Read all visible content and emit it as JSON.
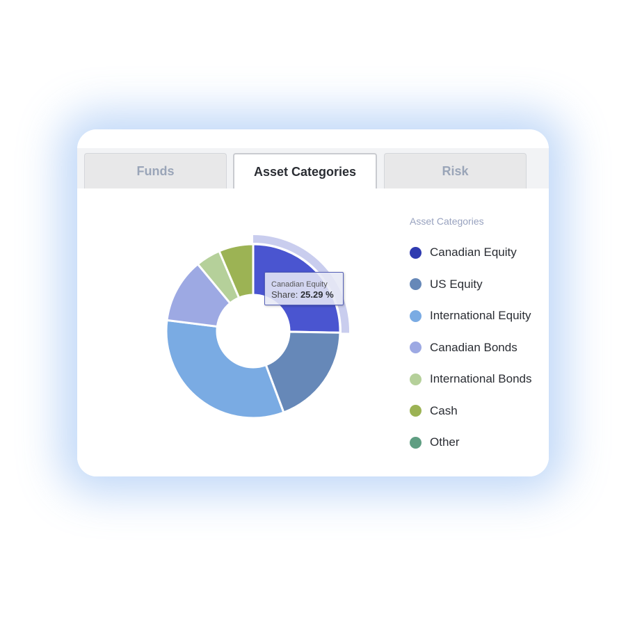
{
  "tabs": [
    {
      "label": "Funds",
      "active": false
    },
    {
      "label": "Asset Categories",
      "active": true
    },
    {
      "label": "Risk",
      "active": false
    }
  ],
  "chart_data": {
    "type": "pie",
    "variant": "donut",
    "legend_title": "Asset Categories",
    "legend_placement": "right",
    "categories": [
      "Canadian Equity",
      "US Equity",
      "International Equity",
      "Canadian Bonds",
      "International Bonds",
      "Cash",
      "Other"
    ],
    "values": [
      25.29,
      19.0,
      32.7,
      12.0,
      4.6,
      6.4,
      0
    ],
    "unit": "%",
    "colors": [
      "#2f3bb0",
      "#6688b8",
      "#7aabe3",
      "#9da9e3",
      "#b5d09a",
      "#9cb354",
      "#5f9e82"
    ],
    "hovered_color": "#4a55d0",
    "hovered_index": 0,
    "tooltip": {
      "name": "Canadian Equity",
      "label": "Share:",
      "value": "25.29 %"
    }
  }
}
